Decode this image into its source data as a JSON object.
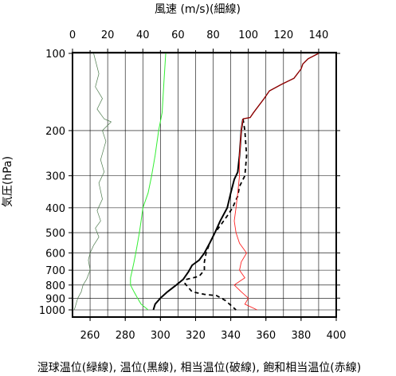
{
  "chart_data": {
    "type": "line",
    "title": "",
    "top_xlabel": "風速 (m/s)(細線)",
    "bottom_xlabel": "湿球温位(緑線), 温位(黒線), 相当温位(破線), 飽和相当温位(赤線)",
    "ylabel": "気圧(hPa)",
    "y_scale": "log",
    "y_inverted": true,
    "ylim": [
      1025,
      100
    ],
    "y_ticks": [
      100,
      200,
      300,
      400,
      500,
      600,
      700,
      800,
      900,
      1000
    ],
    "y_tick_labels": [
      "100",
      "200",
      "300",
      "400",
      "500",
      "600",
      "700",
      "800",
      "900",
      "1000"
    ],
    "bottom_xlim": [
      250,
      400
    ],
    "bottom_x_ticks": [
      260,
      280,
      300,
      320,
      340,
      360,
      380,
      400
    ],
    "bottom_x_tick_labels": [
      "260",
      "280",
      "300",
      "320",
      "340",
      "360",
      "380",
      "400"
    ],
    "top_xlim": [
      0,
      150
    ],
    "top_x_ticks": [
      0,
      20,
      40,
      60,
      80,
      100,
      120,
      140
    ],
    "top_x_tick_labels": [
      "0",
      "20",
      "40",
      "60",
      "80",
      "100",
      "120",
      "140"
    ],
    "grid": true,
    "colors": {
      "wind": "#4d7a4d",
      "wet_bulb_theta": "#33ee33",
      "theta": "#000000",
      "theta_e": "#000000",
      "theta_es": "#ff2222",
      "theta_es_upper": "#8b0000"
    },
    "series": [
      {
        "key": "wind",
        "axis": "top",
        "style": "thin",
        "points": [
          [
            12,
            100
          ],
          [
            15,
            120
          ],
          [
            13,
            135
          ],
          [
            17,
            150
          ],
          [
            14,
            165
          ],
          [
            18,
            180
          ],
          [
            22,
            185
          ],
          [
            17,
            200
          ],
          [
            19,
            220
          ],
          [
            16,
            260
          ],
          [
            18,
            290
          ],
          [
            15,
            320
          ],
          [
            17,
            370
          ],
          [
            14,
            410
          ],
          [
            16,
            450
          ],
          [
            13,
            480
          ],
          [
            15,
            520
          ],
          [
            12,
            560
          ],
          [
            10,
            600
          ],
          [
            9,
            640
          ],
          [
            10,
            700
          ],
          [
            8,
            760
          ],
          [
            6,
            800
          ],
          [
            5,
            850
          ],
          [
            3,
            900
          ],
          [
            2,
            950
          ],
          [
            1,
            1000
          ]
        ]
      },
      {
        "key": "wet_bulb_theta",
        "axis": "bottom",
        "points": [
          [
            303,
            100
          ],
          [
            302,
            130
          ],
          [
            301,
            170
          ],
          [
            299,
            200
          ],
          [
            297,
            250
          ],
          [
            295,
            300
          ],
          [
            293,
            350
          ],
          [
            290,
            400
          ],
          [
            289,
            450
          ],
          [
            288,
            500
          ],
          [
            287,
            550
          ],
          [
            286,
            600
          ],
          [
            285,
            650
          ],
          [
            284,
            700
          ],
          [
            283,
            750
          ],
          [
            283,
            800
          ],
          [
            285,
            850
          ],
          [
            287,
            900
          ],
          [
            289,
            950
          ],
          [
            293,
            1000
          ]
        ]
      },
      {
        "key": "theta",
        "axis": "bottom",
        "points": [
          [
            347,
            180
          ],
          [
            346,
            200
          ],
          [
            345,
            250
          ],
          [
            344,
            290
          ],
          [
            342,
            310
          ],
          [
            340,
            350
          ],
          [
            338,
            400
          ],
          [
            334,
            450
          ],
          [
            331,
            500
          ],
          [
            328,
            550
          ],
          [
            325,
            600
          ],
          [
            322,
            640
          ],
          [
            318,
            670
          ],
          [
            316,
            710
          ],
          [
            313,
            760
          ],
          [
            309,
            800
          ],
          [
            304,
            850
          ],
          [
            300,
            900
          ],
          [
            297,
            950
          ],
          [
            296,
            1000
          ]
        ]
      },
      {
        "key": "theta_e",
        "axis": "bottom",
        "dashed": true,
        "points": [
          [
            347,
            180
          ],
          [
            348,
            200
          ],
          [
            349,
            250
          ],
          [
            348,
            300
          ],
          [
            345,
            330
          ],
          [
            344,
            360
          ],
          [
            341,
            400
          ],
          [
            338,
            430
          ],
          [
            334,
            470
          ],
          [
            331,
            500
          ],
          [
            328,
            550
          ],
          [
            326,
            600
          ],
          [
            325,
            650
          ],
          [
            325,
            700
          ],
          [
            322,
            740
          ],
          [
            315,
            760
          ],
          [
            314,
            790
          ],
          [
            318,
            850
          ],
          [
            325,
            870
          ],
          [
            332,
            880
          ],
          [
            337,
            920
          ],
          [
            343,
            1000
          ]
        ]
      },
      {
        "key": "theta_es",
        "axis": "bottom",
        "points": [
          [
            347,
            180
          ],
          [
            346,
            200
          ],
          [
            345,
            250
          ],
          [
            345,
            300
          ],
          [
            344,
            350
          ],
          [
            343,
            400
          ],
          [
            342,
            450
          ],
          [
            343,
            500
          ],
          [
            345,
            550
          ],
          [
            349,
            600
          ],
          [
            346,
            650
          ],
          [
            345,
            700
          ],
          [
            348,
            750
          ],
          [
            342,
            800
          ],
          [
            346,
            850
          ],
          [
            350,
            900
          ],
          [
            348,
            950
          ],
          [
            355,
            1000
          ]
        ]
      },
      {
        "key": "theta_es_upper",
        "axis": "bottom",
        "points": [
          [
            390,
            100
          ],
          [
            384,
            105
          ],
          [
            381,
            110
          ],
          [
            380,
            115
          ],
          [
            376,
            125
          ],
          [
            369,
            132
          ],
          [
            362,
            140
          ],
          [
            359,
            150
          ],
          [
            353,
            170
          ],
          [
            351,
            178
          ],
          [
            347,
            180
          ]
        ]
      }
    ]
  }
}
